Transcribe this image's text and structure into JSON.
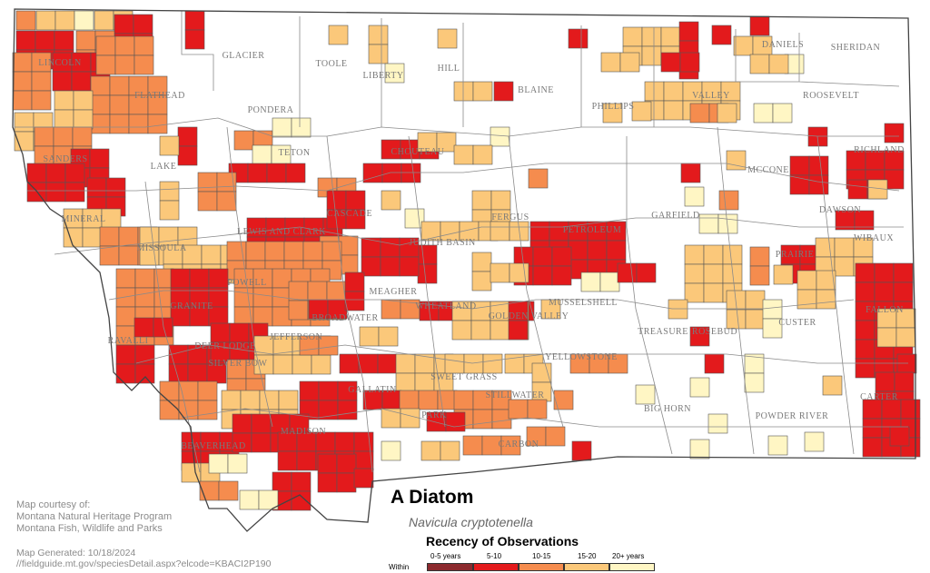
{
  "title": "A Diatom",
  "subtitle": "Navicula cryptotenella",
  "credits": [
    "Map courtesy of:",
    "Montana Natural Heritage Program",
    "Montana Fish, Wildlife and Parks"
  ],
  "generated": [
    "Map Generated: 10/18/2024",
    "//fieldguide.mt.gov/speciesDetail.aspx?elcode=KBACI2P190"
  ],
  "legend": {
    "title": "Recency of Observations",
    "within_label": "Within",
    "classes": [
      {
        "label": "0-5 years",
        "color": "#8c2a2e"
      },
      {
        "label": "5-10",
        "color": "#e31a1c"
      },
      {
        "label": "10-15",
        "color": "#f58c4e"
      },
      {
        "label": "15-20",
        "color": "#fbc87a"
      },
      {
        "label": "20+ years",
        "color": "#fff6c4"
      }
    ]
  },
  "county_labels": [
    "GLACIER",
    "TOOLE",
    "LIBERTY",
    "HILL",
    "BLAINE",
    "PHILLIPS",
    "VALLEY",
    "DANIELS",
    "SHERIDAN",
    "ROOSEVELT",
    "LINCOLN",
    "FLATHEAD",
    "PONDERA",
    "TETON",
    "CHOUTEAU",
    "SANDERS",
    "LAKE",
    "RICHLAND",
    "MCCONE",
    "GARFIELD",
    "CASCADE",
    "FERGUS",
    "PETROLEUM",
    "DAWSON",
    "WIBAUX",
    "MINERAL",
    "MISSOULA",
    "LEWIS AND CLARK",
    "JUDITH BASIN",
    "PRAIRIE",
    "POWELL",
    "MEAGHER",
    "MUSSELSHELL",
    "FALLON",
    "GRANITE",
    "WHEATLAND",
    "GOLDEN VALLEY",
    "ROSEBUD",
    "CUSTER",
    "TREASURE",
    "RAVALLI",
    "DEER LODGE",
    "BROADWATER",
    "JEFFERSON",
    "SILVER BOW",
    "YELLOWSTONE",
    "SWEET GRASS",
    "STILLWATER",
    "GALLATIN",
    "PARK",
    "BIG HORN",
    "POWDER RIVER",
    "CARTER",
    "MADISON",
    "BEAVERHEAD",
    "CARBON"
  ],
  "colors": {
    "border": "#444444",
    "county_line": "#8a8a8a",
    "cell_line": "#555555",
    "label_color": "#7a7a7a"
  }
}
